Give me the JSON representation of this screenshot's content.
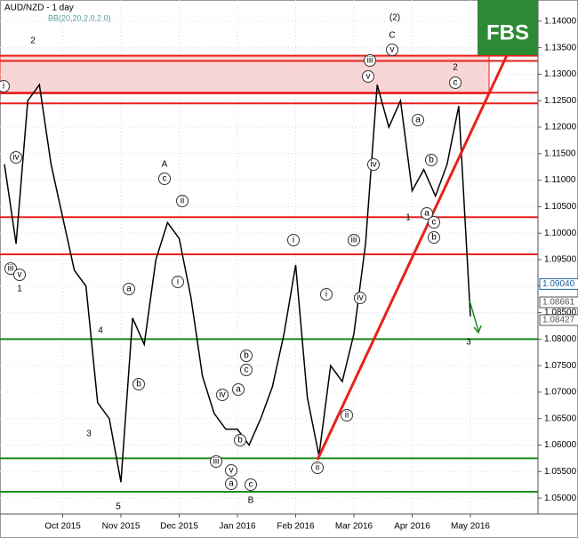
{
  "chart_data": {
    "type": "line",
    "title": "AUD/NZD - 1 day",
    "subtitle": "BB(20,20,2,0,2.0)",
    "logo": "FBS",
    "color": "#000000",
    "categories": [
      null,
      null,
      null,
      null,
      null,
      "Oct 2015",
      null,
      null,
      null,
      null,
      "Nov 2015",
      null,
      null,
      null,
      null,
      "Dec 2015",
      null,
      null,
      null,
      null,
      "Jan 2016",
      null,
      null,
      null,
      null,
      "Feb 2016",
      null,
      null,
      null,
      null,
      "Mar 2016",
      null,
      null,
      null,
      null,
      "Apr 2016",
      null,
      null,
      null,
      null,
      "May 2016"
    ],
    "values": [
      1.113,
      1.098,
      1.125,
      1.128,
      1.113,
      1.103,
      1.093,
      1.09,
      1.068,
      1.065,
      1.053,
      1.084,
      1.079,
      1.095,
      1.102,
      1.099,
      1.088,
      1.073,
      1.066,
      1.063,
      1.063,
      1.06,
      1.065,
      1.071,
      1.081,
      1.094,
      1.069,
      1.058,
      1.075,
      1.072,
      1.081,
      1.098,
      1.128,
      1.12,
      1.125,
      1.108,
      1.112,
      1.107,
      1.113,
      1.124,
      1.0843
    ],
    "ylim": [
      1.047,
      1.144
    ],
    "yticks": [
      {
        "value": 1.05,
        "label": "1.05000"
      },
      {
        "value": 1.055,
        "label": "1.05500"
      },
      {
        "value": 1.06,
        "label": "1.06000"
      },
      {
        "value": 1.065,
        "label": "1.06500"
      },
      {
        "value": 1.07,
        "label": "1.07000"
      },
      {
        "value": 1.075,
        "label": "1.07500"
      },
      {
        "value": 1.08,
        "label": "1.08000"
      },
      {
        "value": 1.085,
        "label": "1.08500"
      },
      {
        "value": 1.09,
        "label": "1.09000"
      },
      {
        "value": 1.095,
        "label": "1.09500"
      },
      {
        "value": 1.1,
        "label": "1.10000"
      },
      {
        "value": 1.105,
        "label": "1.10500"
      },
      {
        "value": 1.11,
        "label": "1.11000"
      },
      {
        "value": 1.115,
        "label": "1.11500"
      },
      {
        "value": 1.12,
        "label": "1.12000"
      },
      {
        "value": 1.125,
        "label": "1.12500"
      },
      {
        "value": 1.13,
        "label": "1.13000"
      },
      {
        "value": 1.135,
        "label": "1.13500"
      },
      {
        "value": 1.14,
        "label": "1.14000"
      }
    ],
    "grid": true,
    "price_labels": [
      {
        "value": 1.0904,
        "label": "1.09040"
      },
      {
        "value": 1.08661,
        "label": "1.08661"
      },
      {
        "value": 1.08427,
        "label": "1.08427"
      }
    ],
    "resistance_levels": [
      1.1335,
      1.1325,
      1.1265,
      1.1245,
      1.103,
      1.096
    ],
    "resistance_color": "#e8211c",
    "support_levels": [
      1.08,
      1.0575,
      1.0512
    ],
    "support_color": "#1a8a1a",
    "zone": [
      1.1263,
      1.1335
    ],
    "zone_color": "#f9d6d6",
    "wave_labels": [
      "2",
      "1",
      "A",
      "4",
      "3",
      "5",
      "B",
      "(2)",
      "C",
      "2",
      "1",
      "3"
    ],
    "sub_wave_labels": [
      "i",
      "iv",
      "iii",
      "v",
      "c",
      "ii",
      "i",
      "a",
      "b",
      "iii",
      "v",
      "a",
      "c",
      "iv",
      "a",
      "b",
      "c",
      "b",
      "i",
      "ii",
      "ii",
      "i",
      "iv",
      "iii",
      "iii",
      "v",
      "iv",
      "v",
      "a",
      "b",
      "a",
      "c",
      "b",
      "c"
    ]
  }
}
